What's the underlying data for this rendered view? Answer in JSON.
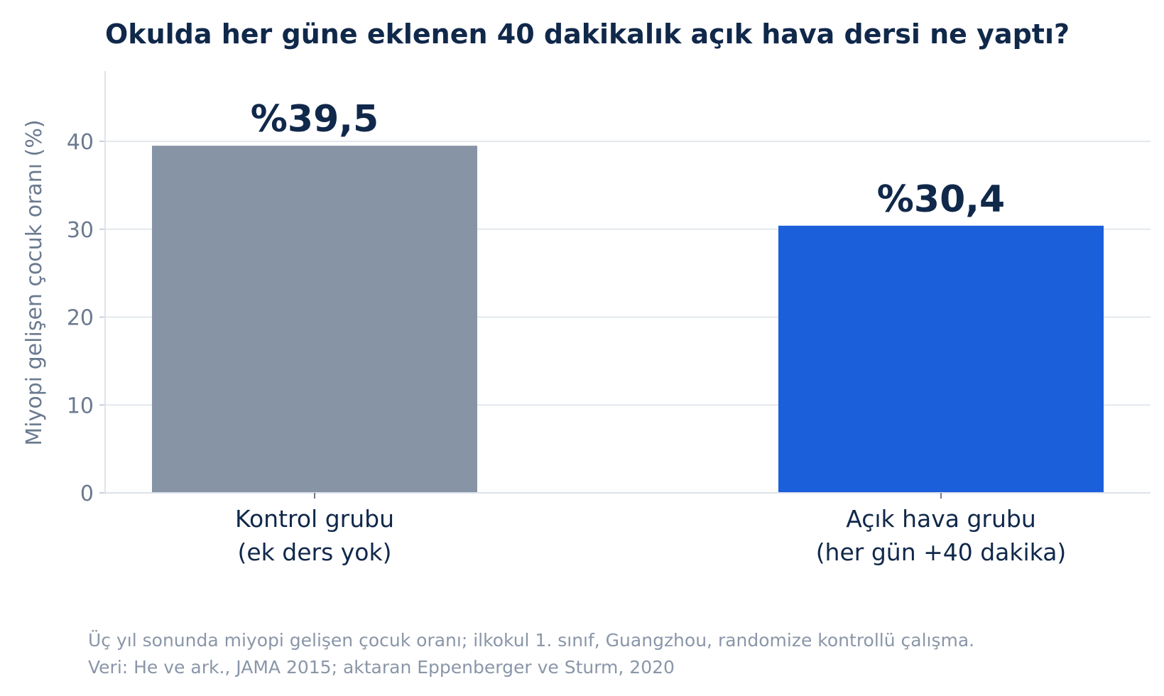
{
  "chart_data": {
    "type": "bar",
    "title": "Okulda her güne eklenen 40 dakikalık açık hava dersi ne yaptı?",
    "ylabel": "Miyopi gelişen çocuk oranı (%)",
    "xlabel": "",
    "ylim": [
      0,
      48
    ],
    "yticks": [
      "0",
      "10",
      "20",
      "30",
      "40"
    ],
    "grid": true,
    "categories": [
      [
        "Kontrol grubu",
        "(ek ders yok)"
      ],
      [
        "Açık hava grubu",
        "(her gün +40 dakika)"
      ]
    ],
    "values": [
      39.5,
      30.4
    ],
    "value_labels": [
      "%39,5",
      "%30,4"
    ],
    "colors": [
      "#8694a6",
      "#1b5fdb"
    ]
  },
  "footnote": {
    "line1": "Üç yıl sonunda miyopi gelişen çocuk oranı; ilkokul 1. sınıf, Guangzhou, randomize kontrollü çalışma.",
    "line2": "Veri: He ve ark., JAMA 2015; aktaran Eppenberger ve Sturm, 2020"
  }
}
